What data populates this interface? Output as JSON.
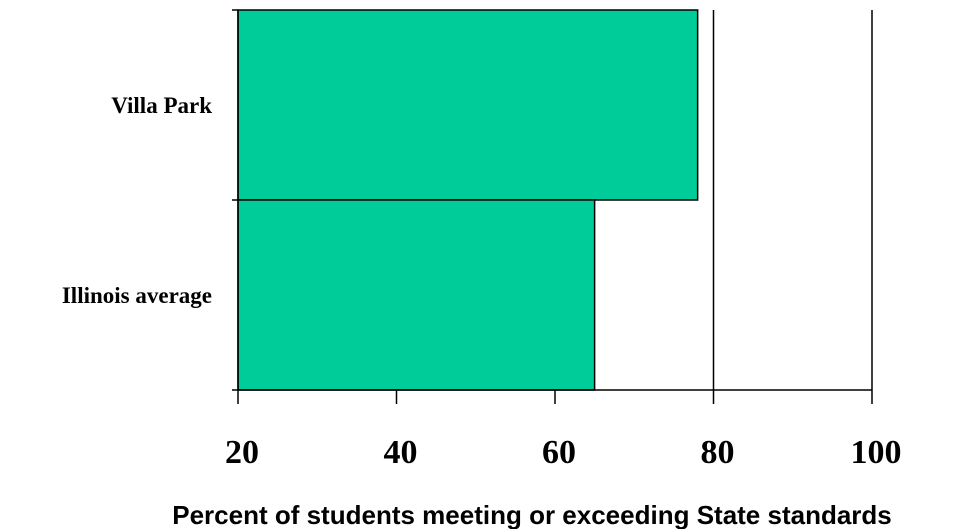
{
  "chart_data": {
    "type": "bar",
    "orientation": "horizontal",
    "categories": [
      "Villa Park",
      "Illinois average"
    ],
    "values": [
      78,
      65
    ],
    "xlim": [
      20,
      100
    ],
    "xticks": [
      20,
      40,
      60,
      80,
      100
    ],
    "xlabel": "Percent of students meeting or exceeding State standards",
    "ylabel": "",
    "title": "",
    "grid": "vertical",
    "bar_color": "#00cc99",
    "legend": "none"
  }
}
